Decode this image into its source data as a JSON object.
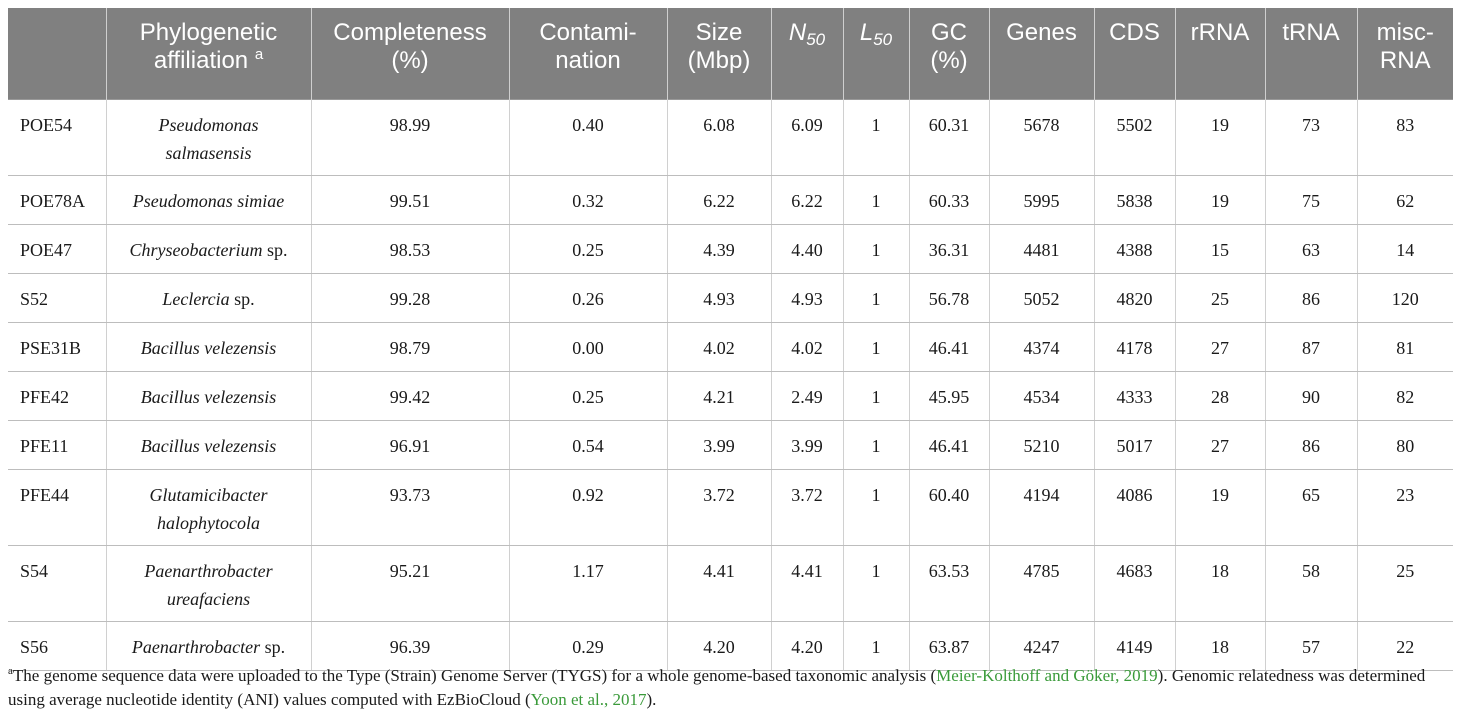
{
  "table": {
    "headers": {
      "strain": "",
      "phylo_line1": "Phylogenetic",
      "phylo_line2": "affiliation",
      "phylo_sup": "a",
      "completeness_line1": "Completeness",
      "completeness_line2": "(%)",
      "contamination_line1": "Contami-",
      "contamination_line2": "nation",
      "size_line1": "Size",
      "size_line2": "(Mbp)",
      "n50_base": "N",
      "n50_sub": "50",
      "l50_base": "L",
      "l50_sub": "50",
      "gc_line1": "GC",
      "gc_line2": "(%)",
      "genes": "Genes",
      "cds": "CDS",
      "rrna": "rRNA",
      "trna": "tRNA",
      "misc_line1": "misc-",
      "misc_line2": "RNA"
    },
    "rows": [
      {
        "strain": "POE54",
        "taxon_italic": "Pseudomonas",
        "taxon_italic2": "salmasensis",
        "taxon_plain": "",
        "completeness": "98.99",
        "contamination": "0.40",
        "size": "6.08",
        "n50": "6.09",
        "l50": "1",
        "gc": "60.31",
        "genes": "5678",
        "cds": "5502",
        "rrna": "19",
        "trna": "73",
        "misc": "83"
      },
      {
        "strain": "POE78A",
        "taxon_italic": "Pseudomonas simiae",
        "taxon_italic2": "",
        "taxon_plain": "",
        "completeness": "99.51",
        "contamination": "0.32",
        "size": "6.22",
        "n50": "6.22",
        "l50": "1",
        "gc": "60.33",
        "genes": "5995",
        "cds": "5838",
        "rrna": "19",
        "trna": "75",
        "misc": "62"
      },
      {
        "strain": "POE47",
        "taxon_italic": "Chryseobacterium",
        "taxon_italic2": "",
        "taxon_plain": " sp.",
        "completeness": "98.53",
        "contamination": "0.25",
        "size": "4.39",
        "n50": "4.40",
        "l50": "1",
        "gc": "36.31",
        "genes": "4481",
        "cds": "4388",
        "rrna": "15",
        "trna": "63",
        "misc": "14"
      },
      {
        "strain": "S52",
        "taxon_italic": "Leclercia",
        "taxon_italic2": "",
        "taxon_plain": " sp.",
        "completeness": "99.28",
        "contamination": "0.26",
        "size": "4.93",
        "n50": "4.93",
        "l50": "1",
        "gc": "56.78",
        "genes": "5052",
        "cds": "4820",
        "rrna": "25",
        "trna": "86",
        "misc": "120"
      },
      {
        "strain": "PSE31B",
        "taxon_italic": "Bacillus velezensis",
        "taxon_italic2": "",
        "taxon_plain": "",
        "completeness": "98.79",
        "contamination": "0.00",
        "size": "4.02",
        "n50": "4.02",
        "l50": "1",
        "gc": "46.41",
        "genes": "4374",
        "cds": "4178",
        "rrna": "27",
        "trna": "87",
        "misc": "81"
      },
      {
        "strain": "PFE42",
        "taxon_italic": "Bacillus velezensis",
        "taxon_italic2": "",
        "taxon_plain": "",
        "completeness": "99.42",
        "contamination": "0.25",
        "size": "4.21",
        "n50": "2.49",
        "l50": "1",
        "gc": "45.95",
        "genes": "4534",
        "cds": "4333",
        "rrna": "28",
        "trna": "90",
        "misc": "82"
      },
      {
        "strain": "PFE11",
        "taxon_italic": "Bacillus velezensis",
        "taxon_italic2": "",
        "taxon_plain": "",
        "completeness": "96.91",
        "contamination": "0.54",
        "size": "3.99",
        "n50": "3.99",
        "l50": "1",
        "gc": "46.41",
        "genes": "5210",
        "cds": "5017",
        "rrna": "27",
        "trna": "86",
        "misc": "80"
      },
      {
        "strain": "PFE44",
        "taxon_italic": "Glutamicibacter",
        "taxon_italic2": "halophytocola",
        "taxon_plain": "",
        "completeness": "93.73",
        "contamination": "0.92",
        "size": "3.72",
        "n50": "3.72",
        "l50": "1",
        "gc": "60.40",
        "genes": "4194",
        "cds": "4086",
        "rrna": "19",
        "trna": "65",
        "misc": "23"
      },
      {
        "strain": "S54",
        "taxon_italic": "Paenarthrobacter",
        "taxon_italic2": "ureafaciens",
        "taxon_plain": "",
        "completeness": "95.21",
        "contamination": "1.17",
        "size": "4.41",
        "n50": "4.41",
        "l50": "1",
        "gc": "63.53",
        "genes": "4785",
        "cds": "4683",
        "rrna": "18",
        "trna": "58",
        "misc": "25"
      },
      {
        "strain": "S56",
        "taxon_italic": "Paenarthrobacter",
        "taxon_italic2": "",
        "taxon_plain": " sp.",
        "completeness": "96.39",
        "contamination": "0.29",
        "size": "4.20",
        "n50": "4.20",
        "l50": "1",
        "gc": "63.87",
        "genes": "4247",
        "cds": "4149",
        "rrna": "18",
        "trna": "57",
        "misc": "22"
      }
    ]
  },
  "footnote": {
    "marker": "a",
    "text1": "The genome sequence data were uploaded to the Type (Strain) Genome Server (TYGS) for a whole genome-based taxonomic analysis (",
    "ref1": "Meier-Kolthoff and Göker, 2019",
    "text2": "). Genomic relatedness was determined using average nucleotide identity (ANI) values computed with EzBioCloud (",
    "ref2": "Yoon et al., 2017",
    "text3": ").",
    "link_color": "#3a9a3a"
  },
  "colors": {
    "header_bg": "#808080",
    "header_text": "#ffffff"
  }
}
